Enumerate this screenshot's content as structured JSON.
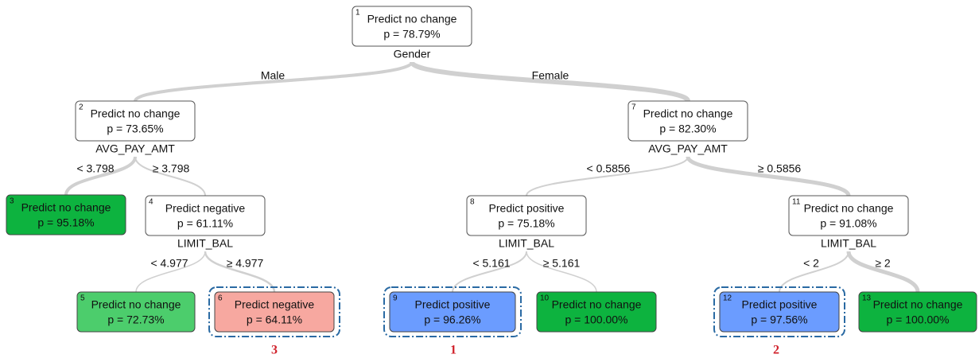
{
  "nodes": [
    {
      "number": 1,
      "prediction": "Predict no change",
      "p": "p = 78.79%",
      "split": "Gender"
    },
    {
      "number": 2,
      "prediction": "Predict no change",
      "p": "p = 73.65%",
      "split": "AVG_PAY_AMT"
    },
    {
      "number": 3,
      "prediction": "Predict no change",
      "p": "p = 95.18%"
    },
    {
      "number": 4,
      "prediction": "Predict negative",
      "p": "p = 61.11%",
      "split": "LIMIT_BAL"
    },
    {
      "number": 5,
      "prediction": "Predict no change",
      "p": "p = 72.73%"
    },
    {
      "number": 6,
      "prediction": "Predict negative",
      "p": "p = 64.11%"
    },
    {
      "number": 7,
      "prediction": "Predict no change",
      "p": "p = 82.30%",
      "split": "AVG_PAY_AMT"
    },
    {
      "number": 8,
      "prediction": "Predict positive",
      "p": "p = 75.18%",
      "split": "LIMIT_BAL"
    },
    {
      "number": 9,
      "prediction": "Predict positive",
      "p": "p = 96.26%"
    },
    {
      "number": 10,
      "prediction": "Predict no change",
      "p": "p = 100.00%"
    },
    {
      "number": 11,
      "prediction": "Predict no change",
      "p": "p = 91.08%",
      "split": "LIMIT_BAL"
    },
    {
      "number": 12,
      "prediction": "Predict positive",
      "p": "p = 97.56%"
    },
    {
      "number": 13,
      "prediction": "Predict no change",
      "p": "p = 100.00%"
    }
  ],
  "edges": [
    {
      "label": "Male"
    },
    {
      "label": "Female"
    },
    {
      "label": "< 3.798"
    },
    {
      "label": "≥ 3.798"
    },
    {
      "label": "< 0.5856"
    },
    {
      "label": "≥ 0.5856"
    },
    {
      "label": "< 4.977"
    },
    {
      "label": "≥ 4.977"
    },
    {
      "label": "< 5.161"
    },
    {
      "label": "≥ 5.161"
    },
    {
      "label": "< 2"
    },
    {
      "label": "≥ 2"
    }
  ],
  "annotations": [
    "3",
    "1",
    "2"
  ]
}
